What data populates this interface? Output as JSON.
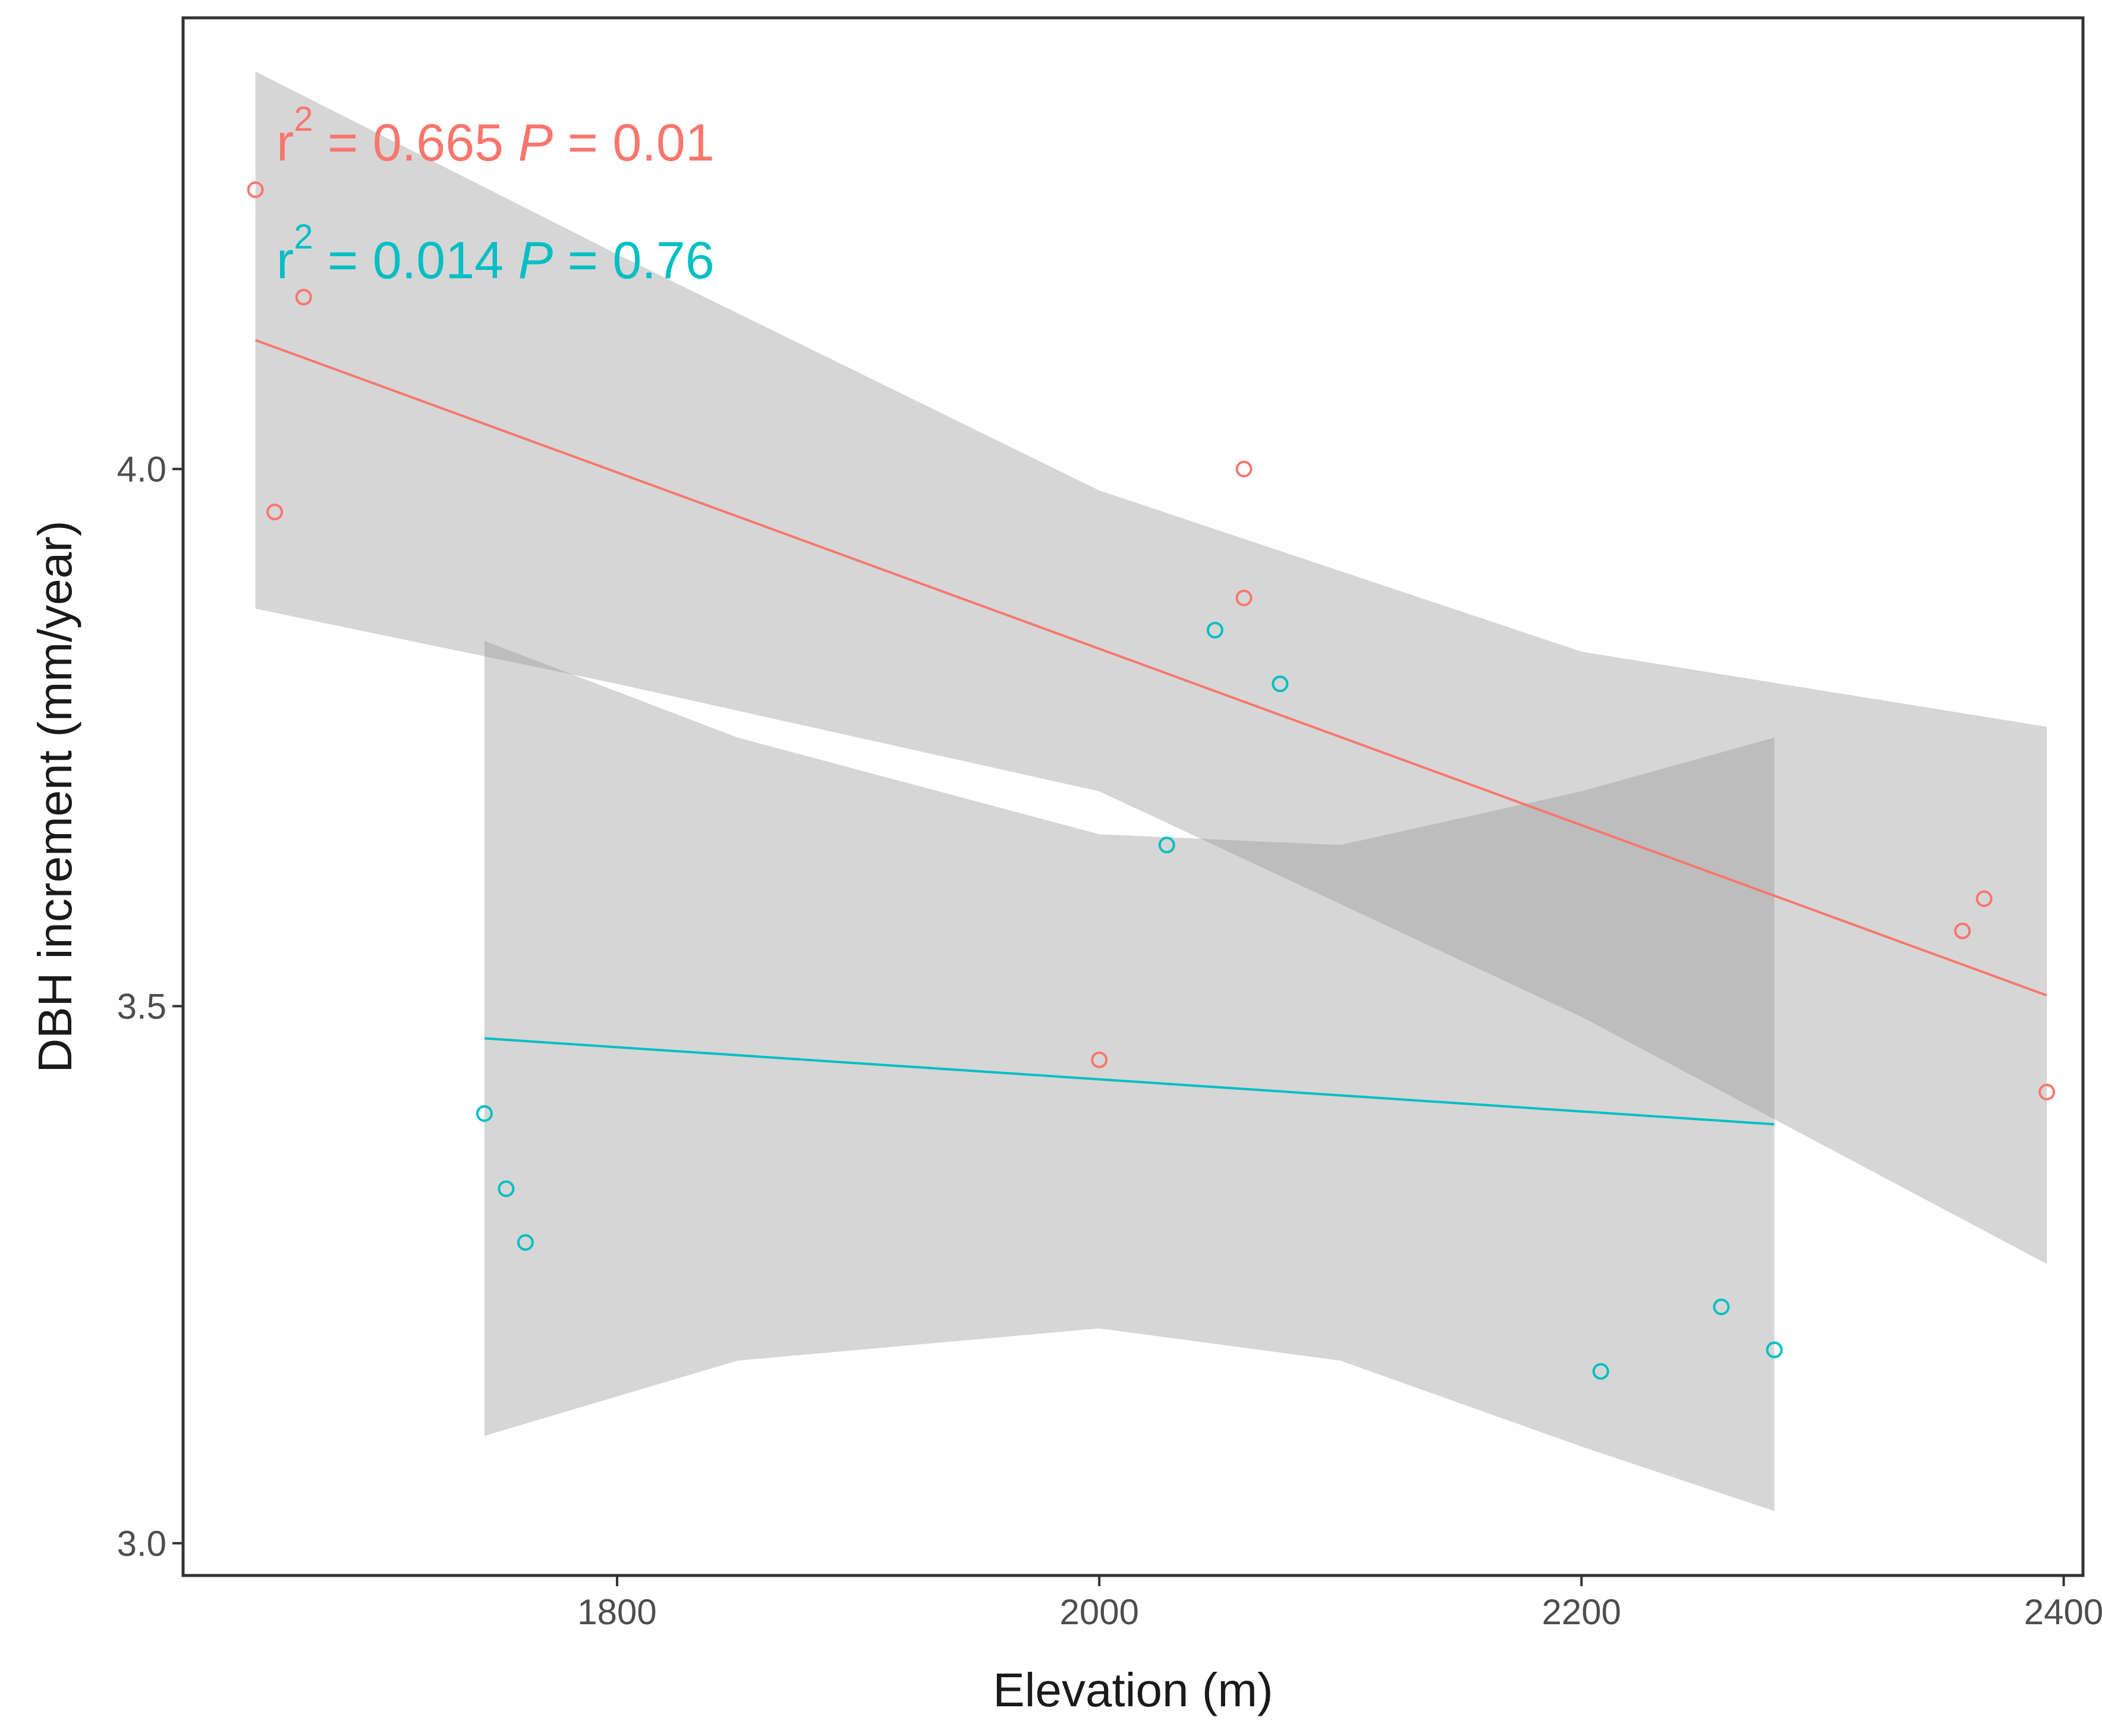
{
  "chart_data": {
    "type": "scatter",
    "xlabel": "Elevation (m)",
    "ylabel": "DBH increment (mm/year)",
    "xlim": [
      1620,
      2408
    ],
    "ylim": [
      2.97,
      4.42
    ],
    "xticks": [
      1800,
      2000,
      2200,
      2400
    ],
    "yticks": [
      3.0,
      3.5,
      4.0
    ],
    "xtick_labels": [
      "1800",
      "2000",
      "2200",
      "2400"
    ],
    "ytick_labels": [
      "3.0",
      "3.5",
      "4.0"
    ],
    "grid": false,
    "legend": "none",
    "colors": {
      "red": "#F8766D",
      "teal": "#00BFC4",
      "ribbon": "#999999"
    },
    "series": [
      {
        "name": "red",
        "color": "#F8766D",
        "points": [
          {
            "x": 1650,
            "y": 4.26
          },
          {
            "x": 1670,
            "y": 4.16
          },
          {
            "x": 1658,
            "y": 3.96
          },
          {
            "x": 2060,
            "y": 4.0
          },
          {
            "x": 2060,
            "y": 3.88
          },
          {
            "x": 2000,
            "y": 3.45
          },
          {
            "x": 2358,
            "y": 3.57
          },
          {
            "x": 2367,
            "y": 3.6
          },
          {
            "x": 2393,
            "y": 3.42
          }
        ],
        "fit": [
          [
            1650,
            4.12
          ],
          [
            2393,
            3.51
          ]
        ],
        "ci_upper": [
          [
            1650,
            4.37
          ],
          [
            1800,
            4.2
          ],
          [
            2000,
            3.98
          ],
          [
            2200,
            3.83
          ],
          [
            2393,
            3.76
          ]
        ],
        "ci_lower": [
          [
            1650,
            3.87
          ],
          [
            1800,
            3.8
          ],
          [
            2000,
            3.7
          ],
          [
            2200,
            3.49
          ],
          [
            2393,
            3.26
          ]
        ],
        "annotation": {
          "r_label": "r",
          "r_exp": "2",
          "r_value": " = 0.665  ",
          "p_label": "P",
          "p_value": " = 0.01"
        }
      },
      {
        "name": "teal",
        "color": "#00BFC4",
        "points": [
          {
            "x": 2048,
            "y": 3.85
          },
          {
            "x": 2075,
            "y": 3.8
          },
          {
            "x": 2028,
            "y": 3.65
          },
          {
            "x": 1745,
            "y": 3.4
          },
          {
            "x": 1754,
            "y": 3.33
          },
          {
            "x": 1762,
            "y": 3.28
          },
          {
            "x": 2258,
            "y": 3.22
          },
          {
            "x": 2280,
            "y": 3.18
          },
          {
            "x": 2208,
            "y": 3.16
          }
        ],
        "fit": [
          [
            1745,
            3.47
          ],
          [
            2280,
            3.39
          ]
        ],
        "ci_upper": [
          [
            1745,
            3.84
          ],
          [
            1850,
            3.75
          ],
          [
            2000,
            3.66
          ],
          [
            2100,
            3.65
          ],
          [
            2200,
            3.7
          ],
          [
            2280,
            3.75
          ]
        ],
        "ci_lower": [
          [
            1745,
            3.1
          ],
          [
            1850,
            3.17
          ],
          [
            2000,
            3.2
          ],
          [
            2100,
            3.17
          ],
          [
            2200,
            3.09
          ],
          [
            2280,
            3.03
          ]
        ],
        "annotation": {
          "r_label": "r",
          "r_exp": "2",
          "r_value": " = 0.014  ",
          "p_label": "P",
          "p_value": " = 0.76"
        }
      }
    ]
  }
}
